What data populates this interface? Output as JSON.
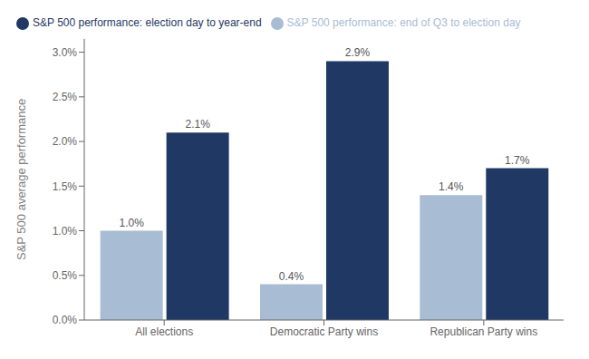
{
  "chart_data": {
    "type": "bar",
    "categories": [
      "All elections",
      "Democratic Party wins",
      "Republican Party wins"
    ],
    "series": [
      {
        "name": "S&P 500 performance: end of Q3 to election day",
        "color": "#a8bcd4",
        "values": [
          0.01,
          0.004,
          0.014
        ],
        "value_labels": [
          "1.0%",
          "0.4%",
          "1.4%"
        ]
      },
      {
        "name": "S&P 500 performance: election day to year-end",
        "color": "#1f3864",
        "values": [
          0.021,
          0.029,
          0.017
        ],
        "value_labels": [
          "2.1%",
          "2.9%",
          "1.7%"
        ]
      }
    ],
    "ylabel": "S&P 500 average performance",
    "ylim": [
      0,
      0.0315
    ],
    "yticks": [
      {
        "value": 0,
        "label": "0.0%"
      },
      {
        "value": 0.005,
        "label": "0.5%"
      },
      {
        "value": 0.01,
        "label": "1.0%"
      },
      {
        "value": 0.015,
        "label": "1.5%"
      },
      {
        "value": 0.02,
        "label": "2.0%"
      },
      {
        "value": 0.025,
        "label": "2.5%"
      },
      {
        "value": 0.03,
        "label": "3.0%"
      }
    ],
    "grid": false,
    "legend": "upper left",
    "data_labels": true
  }
}
